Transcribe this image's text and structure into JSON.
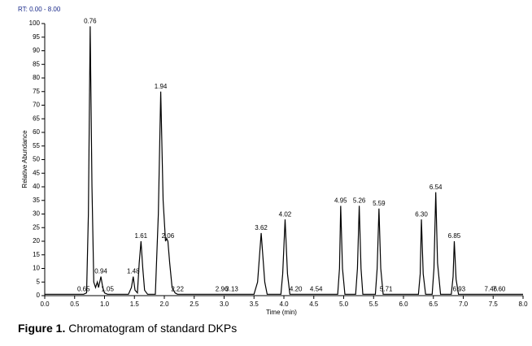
{
  "chart_data": {
    "type": "line",
    "title": "RT: 0.00 - 8.00",
    "xlabel": "Time (min)",
    "ylabel": "Relative Abundance",
    "caption_label": "Figure 1.",
    "caption_text": "Chromatogram of standard  DKPs",
    "color": "#000000",
    "x": [
      0.0,
      0.65,
      0.7,
      0.73,
      0.76,
      0.79,
      0.82,
      0.85,
      0.88,
      0.9,
      0.94,
      0.97,
      1.0,
      1.05,
      1.4,
      1.45,
      1.48,
      1.51,
      1.55,
      1.58,
      1.61,
      1.64,
      1.67,
      1.72,
      1.85,
      1.9,
      1.94,
      1.98,
      2.02,
      2.04,
      2.06,
      2.09,
      2.13,
      2.18,
      2.22,
      3.5,
      3.56,
      3.62,
      3.68,
      3.72,
      3.95,
      3.98,
      4.02,
      4.06,
      4.1,
      4.9,
      4.93,
      4.95,
      4.98,
      5.02,
      5.2,
      5.23,
      5.26,
      5.29,
      5.32,
      5.53,
      5.56,
      5.59,
      5.62,
      5.66,
      6.25,
      6.28,
      6.3,
      6.33,
      6.37,
      6.48,
      6.51,
      6.54,
      6.57,
      6.62,
      6.8,
      6.83,
      6.85,
      6.88,
      6.92,
      8.0
    ],
    "values": [
      0.5,
      0.5,
      1,
      30,
      99,
      40,
      5,
      3,
      5,
      3,
      7,
      3,
      1,
      0.5,
      0.5,
      3,
      7,
      2,
      1,
      12,
      20,
      10,
      2,
      0.5,
      0.5,
      30,
      75,
      35,
      20,
      21,
      20,
      12,
      3,
      1,
      0.5,
      0.5,
      5,
      23,
      5,
      0.5,
      0.5,
      8,
      28,
      8,
      0.5,
      0.5,
      10,
      33,
      10,
      0.5,
      0.5,
      10,
      33,
      10,
      0.5,
      0.5,
      10,
      32,
      10,
      0.5,
      0.5,
      8,
      28,
      8,
      0.5,
      0.5,
      10,
      38,
      12,
      0.5,
      0.5,
      7,
      20,
      6,
      0.5,
      0.5
    ],
    "peak_x": [
      0.65,
      0.76,
      0.94,
      1.05,
      1.48,
      1.61,
      1.94,
      2.06,
      2.22,
      2.96,
      3.13,
      3.62,
      4.02,
      4.2,
      4.54,
      4.95,
      5.26,
      5.59,
      5.71,
      6.3,
      6.54,
      6.85,
      6.93,
      7.46,
      7.6
    ],
    "peak_y": [
      0.5,
      99,
      7,
      0.5,
      7,
      20,
      75,
      20,
      0.5,
      0.5,
      0.5,
      23,
      28,
      0.5,
      0.5,
      33,
      33,
      32,
      0.5,
      28,
      38,
      20,
      0.5,
      0.5,
      0.5
    ],
    "peak_labels": [
      "0.65",
      "0.76",
      "0.94",
      "1.05",
      "1.48",
      "1.61",
      "1.94",
      "2.06",
      "2.22",
      "2.96",
      "3.13",
      "3.62",
      "4.02",
      "4.20",
      "4.54",
      "4.95",
      "5.26",
      "5.59",
      "5.71",
      "6.30",
      "6.54",
      "6.85",
      "6.93",
      "7.46",
      "7.60"
    ],
    "xlim": [
      0,
      8
    ],
    "xticks": [
      {
        "value": 0,
        "label": "0.0"
      },
      0.5,
      {
        "value": 1,
        "label": "1.0"
      },
      1.5,
      {
        "value": 2,
        "label": "2.0"
      },
      2.5,
      {
        "value": 3,
        "label": "3.0"
      },
      3.5,
      {
        "value": 4,
        "label": "4.0"
      },
      4.5,
      {
        "value": 5,
        "label": "5.0"
      },
      5.5,
      {
        "value": 6,
        "label": "6.0"
      },
      6.5,
      {
        "value": 7,
        "label": "7.0"
      },
      7.5,
      {
        "value": 8,
        "label": "8.0"
      }
    ],
    "ylim": [
      0,
      100
    ],
    "yticks": [
      0,
      5,
      10,
      15,
      20,
      25,
      30,
      35,
      40,
      45,
      50,
      55,
      60,
      65,
      70,
      75,
      80,
      85,
      90,
      95,
      100
    ]
  }
}
